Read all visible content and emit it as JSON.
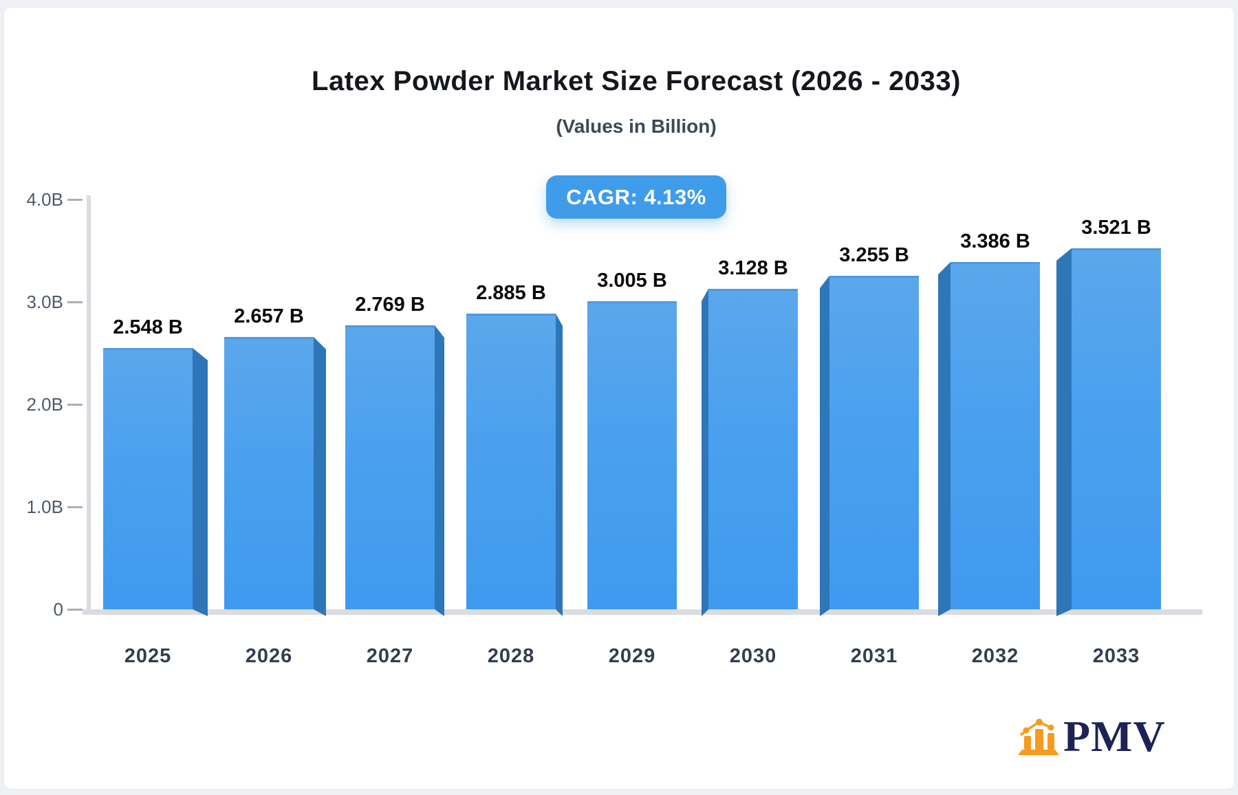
{
  "title": "Latex Powder Market Size Forecast (2026 - 2033)",
  "subtitle": "(Values in Billion)",
  "cagr_badge": "CAGR: 4.13%",
  "logo": {
    "text": "PMV",
    "icon": "bar-chart-logo-icon"
  },
  "chart_data": {
    "type": "bar",
    "title": "Latex Powder Market Size Forecast (2026 - 2033)",
    "subtitle": "(Values in Billion)",
    "annotation": "CAGR: 4.13%",
    "categories": [
      "2025",
      "2026",
      "2027",
      "2028",
      "2029",
      "2030",
      "2031",
      "2032",
      "2033"
    ],
    "values": [
      2.548,
      2.657,
      2.769,
      2.885,
      3.005,
      3.128,
      3.255,
      3.386,
      3.521
    ],
    "bar_labels": [
      "2.548 B",
      "2.657 B",
      "2.769 B",
      "2.885 B",
      "3.005 B",
      "3.128 B",
      "3.255 B",
      "3.386 B",
      "3.521 B"
    ],
    "xlabel": "",
    "ylabel": "",
    "ylim": [
      0,
      4.0
    ],
    "y_ticks": [
      {
        "value": 4.0,
        "label": "4.0B"
      },
      {
        "value": 3.0,
        "label": "3.0B"
      },
      {
        "value": 2.0,
        "label": "2.0B"
      },
      {
        "value": 1.0,
        "label": "1.0B"
      },
      {
        "value": 0.0,
        "label": "0"
      }
    ],
    "grid": false,
    "legend": false,
    "style": "3d-perspective-bars",
    "colors": {
      "bar_face_top": "#5ba7ec",
      "bar_face_bottom": "#3f9aef",
      "bar_top_edge": "#4e9ae1",
      "bar_side": "#2d76b8",
      "axis": "#d9dce1",
      "tick_dash": "#a9b0b8",
      "tick_label": "#4d5a68",
      "category_label": "#333e4d",
      "value_label": "#0a0a0a",
      "badge_bg": "#3f9ceb",
      "badge_text": "#ffffff",
      "logo_navy": "#1d2356",
      "logo_orange": "#f59b20"
    }
  }
}
